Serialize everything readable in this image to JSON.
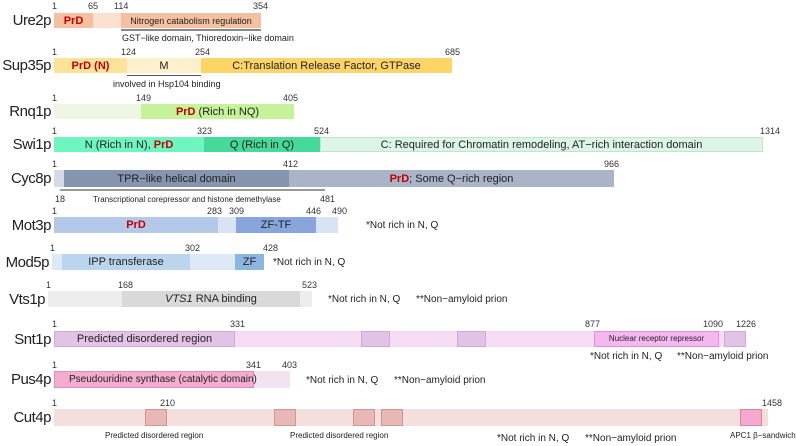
{
  "proteins": {
    "ure2p": {
      "name": "Ure2p",
      "ticks": [
        "1",
        "65",
        "114",
        "354"
      ],
      "prd": "PrD",
      "domain": "Nitrogen catabolism regulation",
      "sub": "GST−like domain, Thioredoxin−like domain"
    },
    "sup35p": {
      "name": "Sup35p",
      "ticks": [
        "1",
        "124",
        "254",
        "685"
      ],
      "prd": "PrD (N)",
      "m": "M",
      "c": "C:Translation Release Factor, GTPase",
      "sub": "involved in Hsp104 binding"
    },
    "rnq1p": {
      "name": "Rnq1p",
      "ticks": [
        "1",
        "149",
        "405"
      ],
      "prd": "PrD",
      "prd_rest": " (Rich in NQ)"
    },
    "swi1p": {
      "name": "Swi1p",
      "ticks": [
        "1",
        "323",
        "524",
        "1314"
      ],
      "n": "N (Rich in N), ",
      "prd": "PrD",
      "q": "Q (Rich in Q)",
      "c": "C: Required for Chromatin remodeling, AT−rich interaction domain"
    },
    "cyc8p": {
      "name": "Cyc8p",
      "ticks": [
        "1",
        "412",
        "966"
      ],
      "tpr": "TPR−like helical domain",
      "prd": "PrD",
      "prd_rest": "; Some Q−rich region",
      "sub_start": "18",
      "sub": "Transcriptional corepressor and histone demethylase",
      "sub_end": "481"
    },
    "mot3p": {
      "name": "Mot3p",
      "ticks": [
        "1",
        "283",
        "309",
        "446",
        "490"
      ],
      "prd": "PrD",
      "zf": "ZF-TF",
      "note": "*Not rich in N, Q"
    },
    "mod5p": {
      "name": "Mod5p",
      "ticks": [
        "1",
        "302",
        "428"
      ],
      "ipp": "IPP transferase",
      "zf": "ZF",
      "note": "*Not rich in N, Q"
    },
    "vts1p": {
      "name": "Vts1p",
      "ticks": [
        "1",
        "168",
        "523"
      ],
      "domain_italic": "VTS1",
      "domain_rest": " RNA binding",
      "note1": "*Not rich in N, Q",
      "note2": "**Non−amyloid prion"
    },
    "snt1p": {
      "name": "Snt1p",
      "ticks": [
        "1",
        "331",
        "877",
        "1090",
        "1226"
      ],
      "disordered": "Predicted disordered region",
      "nrr": "Nuclear receptor repressor",
      "note1": "*Not rich in N, Q",
      "note2": "**Non−amyloid prion"
    },
    "pus4p": {
      "name": "Pus4p",
      "ticks": [
        "1",
        "341",
        "403"
      ],
      "domain": "Pseudouridine synthase (catalytic domain)",
      "note1": "*Not rich in N, Q",
      "note2": "**Non−amyloid prion"
    },
    "cut4p": {
      "name": "Cut4p",
      "ticks": [
        "1",
        "210",
        "1458"
      ],
      "dis1": "Predicted disordered region",
      "dis2": "Predicted disordered region",
      "apc": "APC1 β−sandwich",
      "note1": "*Not rich in N, Q",
      "note2": "**Non−amyloid prion"
    }
  }
}
